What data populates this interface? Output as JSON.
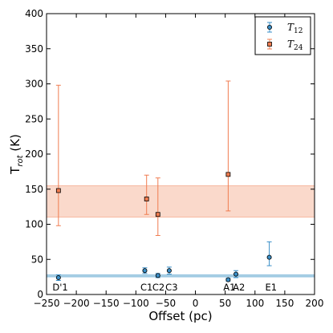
{
  "chart_data": {
    "type": "scatter",
    "xlabel": "Offset (pc)",
    "ylabel": "T",
    "ylabel_sub": "rot",
    "ylabel_unit": "(K)",
    "xlim": [
      -250,
      200
    ],
    "ylim": [
      0,
      400
    ],
    "xticks": [
      -250,
      -200,
      -150,
      -100,
      -50,
      0,
      50,
      100,
      150,
      200
    ],
    "xtick_labels": [
      "−250",
      "−200",
      "−150",
      "−100",
      "−50",
      "0",
      "50",
      "100",
      "150",
      "200"
    ],
    "yticks": [
      0,
      50,
      100,
      150,
      200,
      250,
      300,
      350,
      400
    ],
    "ytick_labels": [
      "0",
      "50",
      "100",
      "150",
      "200",
      "250",
      "300",
      "350",
      "400"
    ],
    "grid": false,
    "legend_position": "top-right",
    "series": [
      {
        "name": "T",
        "name_sub": "12",
        "color": "#3a8fc8",
        "marker": "circle",
        "points": [
          {
            "x": -230,
            "y": 24,
            "err_low": 4,
            "err_high": 4
          },
          {
            "x": -85,
            "y": 34,
            "err_low": 4,
            "err_high": 4
          },
          {
            "x": -63,
            "y": 27,
            "err_low": 3,
            "err_high": 3
          },
          {
            "x": -44,
            "y": 34,
            "err_low": 5,
            "err_high": 5
          },
          {
            "x": 55,
            "y": 21,
            "err_low": 2,
            "err_high": 2
          },
          {
            "x": 68,
            "y": 29,
            "err_low": 5,
            "err_high": 5
          },
          {
            "x": 124,
            "y": 53,
            "err_low": 12,
            "err_high": 22
          }
        ],
        "band": {
          "low": 25,
          "high": 28,
          "color": "#9ecae1"
        }
      },
      {
        "name": "T",
        "name_sub": "24",
        "color": "#f07c50",
        "marker": "square",
        "points": [
          {
            "x": -230,
            "y": 148,
            "err_low": 50,
            "err_high": 150
          },
          {
            "x": -82,
            "y": 136,
            "err_low": 22,
            "err_high": 34
          },
          {
            "x": -63,
            "y": 114,
            "err_low": 30,
            "err_high": 52
          },
          {
            "x": 55,
            "y": 171,
            "err_low": 52,
            "err_high": 133
          }
        ],
        "band": {
          "low": 110,
          "high": 155,
          "color": "#f9d2c2"
        }
      }
    ],
    "region_labels": [
      {
        "text": "D'1",
        "x": -227
      },
      {
        "text": "C1",
        "x": -82
      },
      {
        "text": "C2",
        "x": -62
      },
      {
        "text": "C3",
        "x": -40
      },
      {
        "text": "A1",
        "x": 57
      },
      {
        "text": "A2",
        "x": 73
      },
      {
        "text": "E1",
        "x": 127
      }
    ]
  }
}
